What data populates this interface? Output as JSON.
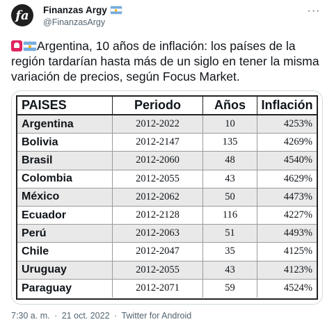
{
  "author": {
    "avatar_letter": "fa",
    "display_name": "Finanzas Argy",
    "handle": "@FinanzasArgy",
    "flag_icon": "argentina-flag-icon"
  },
  "more_icon": "more-options-icon",
  "tweet": {
    "text": "Argentina, 10 años de inflación: los países de la región tardarían hasta más de un siglo en tener la misma variación de precios, según Focus Market.",
    "emoji": [
      "siren-icon",
      "argentina-flag-icon"
    ]
  },
  "table": {
    "headers": [
      "PAISES",
      "Periodo",
      "Años",
      "Inflación"
    ],
    "rows": [
      [
        "Argentina",
        "2012-2022",
        "10",
        "4253%"
      ],
      [
        "Bolivia",
        "2012-2147",
        "135",
        "4269%"
      ],
      [
        "Brasil",
        "2012-2060",
        "48",
        "4540%"
      ],
      [
        "Colombia",
        "2012-2055",
        "43",
        "4629%"
      ],
      [
        "México",
        "2012-2062",
        "50",
        "4473%"
      ],
      [
        "Ecuador",
        "2012-2128",
        "116",
        "4227%"
      ],
      [
        "Perú",
        "2012-2063",
        "51",
        "4493%"
      ],
      [
        "Chile",
        "2012-2047",
        "35",
        "4125%"
      ],
      [
        "Uruguay",
        "2012-2055",
        "43",
        "4123%"
      ],
      [
        "Paraguay",
        "2012-2071",
        "59",
        "4524%"
      ]
    ]
  },
  "meta": {
    "time": "7:30 a. m.",
    "separator": "·",
    "date": "21 oct. 2022",
    "source": "Twitter for Android"
  }
}
